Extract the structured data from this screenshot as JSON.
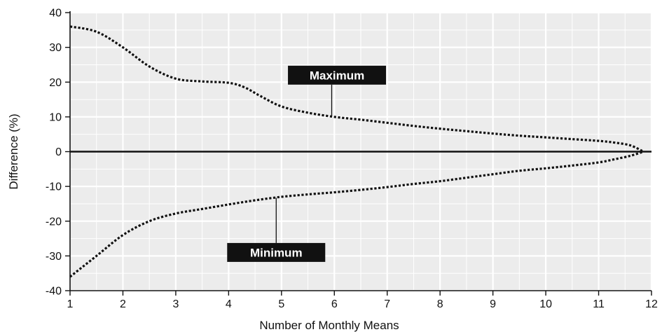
{
  "chart_data": {
    "type": "line",
    "title": "",
    "xlabel": "Number of Monthly Means",
    "ylabel": "Difference (%)",
    "xlim": [
      1,
      12
    ],
    "ylim": [
      -40,
      40
    ],
    "xticks": [
      1,
      2,
      3,
      4,
      5,
      6,
      7,
      8,
      9,
      10,
      11,
      12
    ],
    "yticks": [
      40,
      30,
      20,
      10,
      0,
      -10,
      -20,
      -30,
      -40
    ],
    "grid": true,
    "colors": {
      "background": "#ececec",
      "grid": "#ffffff",
      "line": "#111111",
      "callout_fill": "#111111",
      "callout_text": "#ffffff"
    },
    "series": [
      {
        "name": "Maximum",
        "style": "dotted",
        "x": [
          1,
          1.5,
          2,
          2.5,
          3,
          3.5,
          4,
          4.3,
          4.6,
          5,
          5.5,
          6,
          6.5,
          7,
          7.5,
          8,
          8.5,
          9,
          9.5,
          10,
          10.5,
          11,
          11.3,
          11.6,
          11.85
        ],
        "y": [
          36,
          34.5,
          30,
          24.5,
          21,
          20.2,
          19.8,
          18.5,
          16,
          13,
          11.2,
          10,
          9.2,
          8.3,
          7.4,
          6.6,
          5.9,
          5.2,
          4.6,
          4.1,
          3.6,
          3.1,
          2.6,
          1.8,
          0
        ]
      },
      {
        "name": "Minimum",
        "style": "dotted",
        "x": [
          1,
          1.5,
          2,
          2.5,
          3,
          3.5,
          4,
          4.5,
          5,
          5.5,
          6,
          6.5,
          7,
          7.5,
          8,
          8.5,
          9,
          9.5,
          10,
          10.5,
          11,
          11.3,
          11.6,
          11.85
        ],
        "y": [
          -36,
          -30,
          -24,
          -20,
          -17.8,
          -16.5,
          -15.2,
          -14,
          -13,
          -12.3,
          -11.7,
          -11,
          -10.2,
          -9.3,
          -8.5,
          -7.5,
          -6.5,
          -5.5,
          -4.8,
          -4,
          -3.1,
          -2.2,
          -1.2,
          0
        ]
      },
      {
        "name": "zero",
        "style": "solid",
        "x": [
          1,
          12
        ],
        "y": [
          0,
          0
        ]
      }
    ],
    "annotations": [
      {
        "text": "Maximum",
        "series": "Maximum",
        "label_at": [
          6.05,
          22
        ],
        "points_to": [
          5.95,
          10.3
        ]
      },
      {
        "text": "Minimum",
        "series": "Minimum",
        "label_at": [
          4.9,
          -29
        ],
        "points_to": [
          4.9,
          -13.3
        ]
      }
    ]
  }
}
